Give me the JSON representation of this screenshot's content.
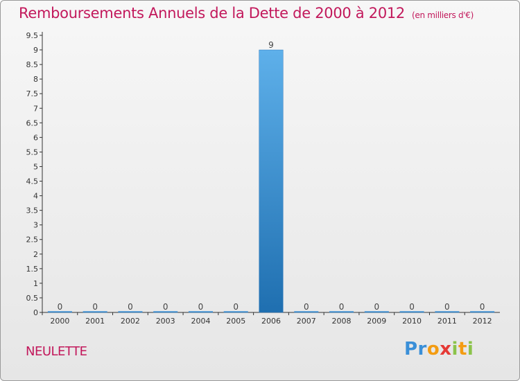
{
  "header": {
    "title": "Remboursements Annuels de la Dette de 2000 à 2012",
    "unit": "(en milliers d'€)"
  },
  "footer": {
    "city": "NEULETTE",
    "logo": "Proxiti"
  },
  "colors": {
    "title": "#c2185b",
    "bar_top": "#5eb0ea",
    "bar_bottom": "#1f6fb0"
  },
  "chart_data": {
    "type": "bar",
    "title": "Remboursements Annuels de la Dette de 2000 à 2012",
    "xlabel": "",
    "ylabel": "",
    "categories": [
      "2000",
      "2001",
      "2002",
      "2003",
      "2004",
      "2005",
      "2006",
      "2007",
      "2008",
      "2009",
      "2010",
      "2011",
      "2012"
    ],
    "values": [
      0,
      0,
      0,
      0,
      0,
      0,
      9,
      0,
      0,
      0,
      0,
      0,
      0
    ],
    "data_labels": [
      "0",
      "0",
      "0",
      "0",
      "0",
      "0",
      "9",
      "0",
      "0",
      "0",
      "0",
      "0",
      "0"
    ],
    "ylim": [
      0,
      9.5
    ],
    "yticks": [
      0,
      0.5,
      1,
      1.5,
      2,
      2.5,
      3,
      3.5,
      4,
      4.5,
      5,
      5.5,
      6,
      6.5,
      7,
      7.5,
      8,
      8.5,
      9,
      9.5
    ],
    "ytick_labels": [
      "0",
      "0.5",
      "1",
      "1.5",
      "2",
      "2.5",
      "3",
      "3.5",
      "4",
      "4.5",
      "5",
      "5.5",
      "6",
      "6.5",
      "7",
      "7.5",
      "8",
      "8.5",
      "9",
      "9.5"
    ],
    "grid": false,
    "legend": "none"
  }
}
